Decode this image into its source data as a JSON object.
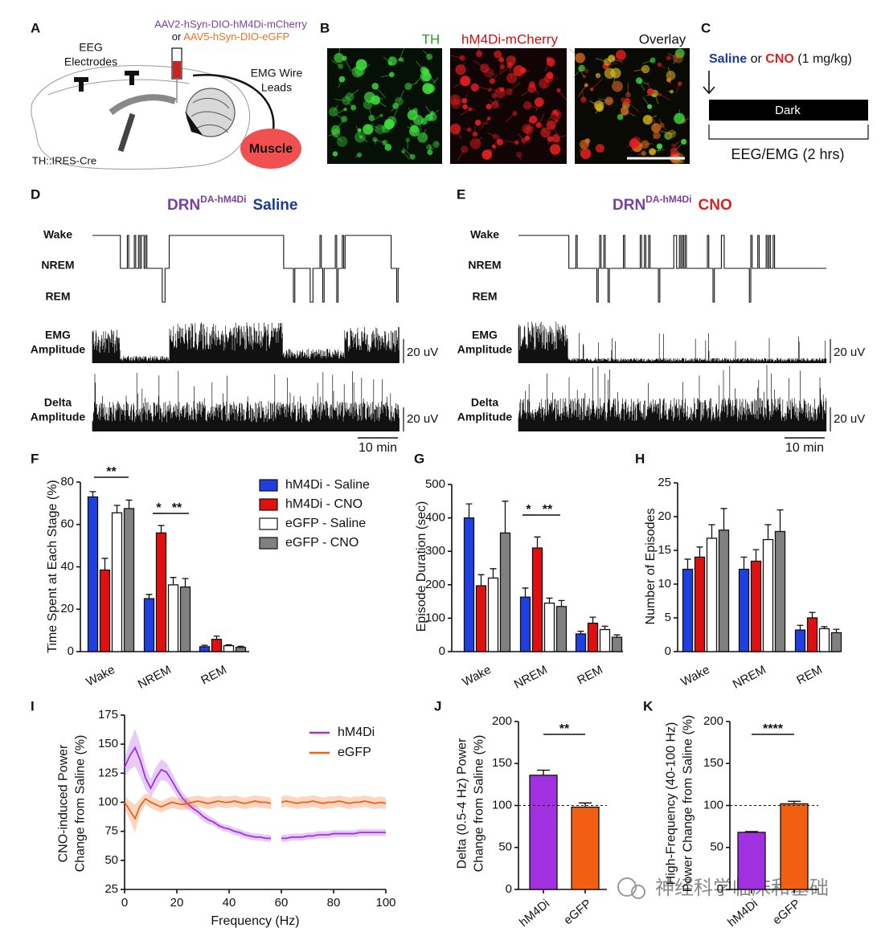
{
  "figure": {
    "panel_labels": [
      "A",
      "B",
      "C",
      "D",
      "E"
    ],
    "A": {
      "virus1": "AAV2-hSyn-DIO-hM4Di-mCherry",
      "or": "or",
      "virus2": "AAV5-hSyn-DIO-eGFP",
      "eeg": [
        "EEG",
        "Electrodes"
      ],
      "emg": [
        "EMG Wire",
        "Leads"
      ],
      "muscle": "Muscle",
      "mouse": "TH::IRES-Cre"
    },
    "B": {
      "titles": [
        "TH",
        "hM4Di-mCherry",
        "Overlay"
      ]
    },
    "C": {
      "saline": "Saline",
      "or": "or",
      "cno": "CNO",
      "dose": "(1 mg/kg)",
      "dark": "Dark",
      "recording": "EEG/EMG (2 hrs)"
    },
    "D": {
      "title": "DRN",
      "superscript": "DA-hM4Di",
      "condition": "Saline",
      "states": [
        "Wake",
        "NREM",
        "REM"
      ],
      "emg": [
        "EMG",
        "Amplitude"
      ],
      "delta": [
        "Delta",
        "Amplitude"
      ],
      "scale_emg": "20 uV",
      "scale_delta": "20 uV",
      "scale_time": "10 min"
    },
    "E": {
      "title": "DRN",
      "superscript": "DA-hM4Di",
      "condition": "CNO",
      "states": [
        "Wake",
        "NREM",
        "REM"
      ],
      "emg": [
        "EMG",
        "Amplitude"
      ],
      "delta": [
        "Delta",
        "Amplitude"
      ],
      "scale_emg": "20 uV",
      "scale_delta": "20 uV",
      "scale_time": "10 min"
    },
    "watermark": "神经科学临床和基础"
  },
  "chart_data": [
    {
      "type": "grouped_bar",
      "label": "F",
      "ylabel": "Time Spent at Each Stage (%)",
      "categories": [
        "Wake",
        "NREM",
        "REM"
      ],
      "series": [
        {
          "name": "hM4Di - Saline",
          "color": "#1f3fe0",
          "values": [
            73,
            25,
            2.3
          ],
          "errors": [
            2.5,
            2,
            0.7
          ]
        },
        {
          "name": "hM4Di - CNO",
          "color": "#e01010",
          "values": [
            38.5,
            56,
            5.8
          ],
          "errors": [
            5.5,
            3.5,
            1.5
          ]
        },
        {
          "name": "eGFP - Saline",
          "color": "#ffffff",
          "values": [
            65.5,
            31.5,
            2.8
          ],
          "errors": [
            3.5,
            3.5,
            0.4
          ]
        },
        {
          "name": "eGFP - CNO",
          "color": "#808080",
          "values": [
            67.5,
            30.5,
            2
          ],
          "errors": [
            4,
            4,
            0.5
          ]
        }
      ],
      "ylim": [
        0,
        80
      ],
      "yticks": [
        0,
        20,
        40,
        60,
        80
      ],
      "annotations": [
        "**",
        "*",
        "**"
      ],
      "legend": "right"
    },
    {
      "type": "grouped_bar",
      "label": "G",
      "ylabel": "Episode Duration (sec)",
      "categories": [
        "Wake",
        "NREM",
        "REM"
      ],
      "series": [
        {
          "color": "#1f3fe0",
          "values": [
            400,
            163,
            53
          ],
          "errors": [
            42,
            27,
            8
          ]
        },
        {
          "color": "#e01010",
          "values": [
            197,
            310,
            85
          ],
          "errors": [
            33,
            33,
            18
          ]
        },
        {
          "color": "#ffffff",
          "values": [
            220,
            145,
            66
          ],
          "errors": [
            28,
            15,
            10
          ]
        },
        {
          "color": "#808080",
          "values": [
            355,
            135,
            43
          ],
          "errors": [
            95,
            18,
            7
          ]
        }
      ],
      "ylim": [
        0,
        500
      ],
      "yticks": [
        0,
        100,
        200,
        300,
        400,
        500
      ],
      "annotations": [
        "*",
        "**"
      ]
    },
    {
      "type": "grouped_bar",
      "label": "H",
      "ylabel": "Number of Episodes",
      "categories": [
        "Wake",
        "NREM",
        "REM"
      ],
      "series": [
        {
          "color": "#1f3fe0",
          "values": [
            12.2,
            12.2,
            3.2
          ],
          "errors": [
            1.5,
            1.8,
            0.7
          ]
        },
        {
          "color": "#e01010",
          "values": [
            14,
            13.4,
            5
          ],
          "errors": [
            1.5,
            1.7,
            0.8
          ]
        },
        {
          "color": "#ffffff",
          "values": [
            16.8,
            16.6,
            3.4
          ],
          "errors": [
            2,
            2.2,
            0.3
          ]
        },
        {
          "color": "#808080",
          "values": [
            18,
            17.8,
            2.8
          ],
          "errors": [
            3.2,
            3.2,
            0.5
          ]
        }
      ],
      "ylim": [
        0,
        25
      ],
      "yticks": [
        0,
        5,
        10,
        15,
        20,
        25
      ],
      "annotations": []
    },
    {
      "type": "line",
      "label": "I",
      "xlabel": "Frequency (Hz)",
      "ylabel": [
        "CNO-induced Power",
        "Change from Saline (%)"
      ],
      "x": [
        0,
        2,
        4,
        6,
        8,
        10,
        12,
        14,
        16,
        18,
        20,
        22,
        24,
        26,
        28,
        30,
        32,
        34,
        36,
        38,
        40,
        42,
        44,
        46,
        48,
        50,
        52,
        54,
        56,
        58,
        60,
        62,
        64,
        66,
        68,
        70,
        72,
        74,
        76,
        78,
        80,
        82,
        84,
        86,
        88,
        90,
        92,
        94,
        96,
        98,
        100
      ],
      "series": [
        {
          "name": "hM4Di",
          "color": "#a030e0",
          "values": [
            130,
            140,
            147,
            136,
            121,
            112,
            121,
            128,
            126,
            119,
            111,
            104,
            99,
            95,
            92,
            88,
            85,
            83,
            80,
            78,
            77,
            75,
            74,
            72,
            71,
            70,
            70,
            69,
            69,
            null,
            69,
            69,
            70,
            70,
            70,
            71,
            71,
            72,
            72,
            72,
            73,
            73,
            73,
            73,
            73,
            74,
            74,
            74,
            74,
            74,
            74
          ],
          "errors": [
            8,
            12,
            16,
            14,
            10,
            8,
            9,
            9,
            8,
            7,
            6,
            5,
            5,
            4,
            4,
            4,
            4,
            3,
            3,
            3,
            3,
            3,
            3,
            3,
            3,
            3,
            3,
            3,
            3,
            null,
            3,
            3,
            3,
            3,
            3,
            3,
            3,
            3,
            3,
            3,
            3,
            3,
            3,
            3,
            3,
            3,
            3,
            3,
            3,
            3,
            3
          ]
        },
        {
          "name": "eGFP",
          "color": "#f06010",
          "values": [
            100,
            93,
            86,
            97,
            103,
            100,
            98,
            96,
            98,
            100,
            99,
            98,
            99,
            100,
            101,
            100,
            99,
            100,
            101,
            100,
            100,
            101,
            100,
            99,
            100,
            101,
            100,
            100,
            99,
            null,
            100,
            101,
            100,
            99,
            100,
            100,
            101,
            100,
            99,
            100,
            100,
            101,
            100,
            99,
            100,
            100,
            101,
            100,
            99,
            100,
            99
          ],
          "errors": [
            6,
            8,
            12,
            6,
            5,
            5,
            5,
            5,
            5,
            5,
            5,
            5,
            5,
            5,
            5,
            5,
            5,
            5,
            5,
            5,
            5,
            5,
            5,
            5,
            5,
            5,
            5,
            5,
            5,
            null,
            5,
            5,
            5,
            5,
            5,
            5,
            5,
            5,
            5,
            5,
            5,
            5,
            5,
            5,
            5,
            5,
            5,
            5,
            5,
            5,
            5
          ]
        }
      ],
      "xlim": [
        0,
        100
      ],
      "xticks": [
        0,
        20,
        40,
        60,
        80,
        100
      ],
      "ylim": [
        25,
        175
      ],
      "yticks": [
        25,
        50,
        75,
        100,
        125,
        150,
        175
      ],
      "legend": "upper right"
    },
    {
      "type": "bar",
      "label": "J",
      "ylabel": [
        "Delta (0.5-4 Hz) Power",
        "Change from Saline (%)"
      ],
      "categories": [
        "hM4Di",
        "eGFP"
      ],
      "colors": [
        "#a030e0",
        "#f06010"
      ],
      "values": [
        136,
        98
      ],
      "errors": [
        6,
        5
      ],
      "ylim": [
        0,
        200
      ],
      "yticks": [
        0,
        50,
        100,
        150,
        200
      ],
      "hline": 100,
      "annotations": [
        "**"
      ]
    },
    {
      "type": "bar",
      "label": "K",
      "ylabel": [
        "High-Frequency (40-100 Hz)",
        "Power Change from Saline (%)"
      ],
      "categories": [
        "hM4Di",
        "eGFP"
      ],
      "colors": [
        "#a030e0",
        "#f06010"
      ],
      "values": [
        68,
        102
      ],
      "errors": [
        1,
        3
      ],
      "ylim": [
        0,
        200
      ],
      "yticks": [
        0,
        50,
        100,
        150,
        200
      ],
      "hline": 100,
      "annotations": [
        "****"
      ]
    }
  ]
}
